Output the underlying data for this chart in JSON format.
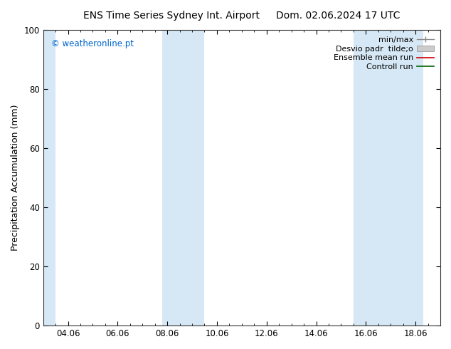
{
  "title_left": "ENS Time Series Sydney Int. Airport",
  "title_right": "Dom. 02.06.2024 17 UTC",
  "ylabel": "Precipitation Accumulation (mm)",
  "watermark": "© weatheronline.pt",
  "ylim": [
    0,
    100
  ],
  "yticks": [
    0,
    20,
    40,
    60,
    80,
    100
  ],
  "x_tick_labels": [
    "04.06",
    "06.06",
    "08.06",
    "10.06",
    "12.06",
    "14.06",
    "16.06",
    "18.06"
  ],
  "x_tick_positions": [
    1,
    3,
    5,
    7,
    9,
    11,
    13,
    15
  ],
  "x_min": 0,
  "x_max": 16,
  "shaded_bands": [
    {
      "x_start": -0.1,
      "x_end": 0.5
    },
    {
      "x_start": 4.8,
      "x_end": 6.5
    },
    {
      "x_start": 12.5,
      "x_end": 15.3
    }
  ],
  "shade_color": "#d6e8f5",
  "legend_labels": [
    "min/max",
    "Desvio padr  tilde;o",
    "Ensemble mean run",
    "Controll run"
  ],
  "background_color": "#ffffff",
  "watermark_color": "#0066cc",
  "title_fontsize": 10,
  "axis_label_fontsize": 9,
  "tick_fontsize": 8.5,
  "legend_fontsize": 8
}
